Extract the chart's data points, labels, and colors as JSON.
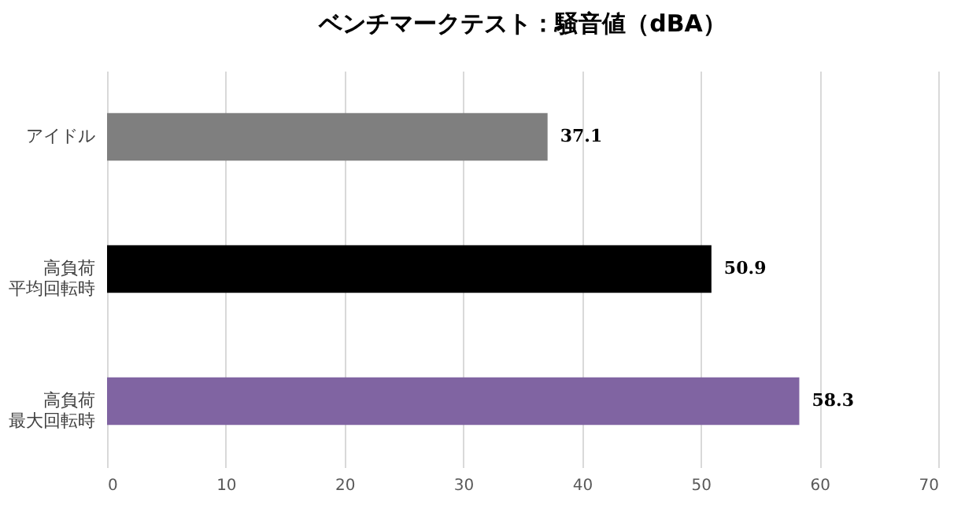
{
  "chart_data": {
    "type": "bar",
    "orientation": "horizontal",
    "title": "ベンチマークテスト：騒音値（dBA）",
    "categories": [
      "アイドル",
      "高負荷平均回転時",
      "高負荷最大回転時"
    ],
    "values": [
      37.1,
      50.9,
      58.3
    ],
    "colors": [
      "#7f7f7f",
      "#000000",
      "#8064a2"
    ],
    "xlim": [
      0,
      70
    ],
    "xticks": [
      0,
      10,
      20,
      30,
      40,
      50,
      60,
      70
    ],
    "grid": "x",
    "data_labels": true
  }
}
